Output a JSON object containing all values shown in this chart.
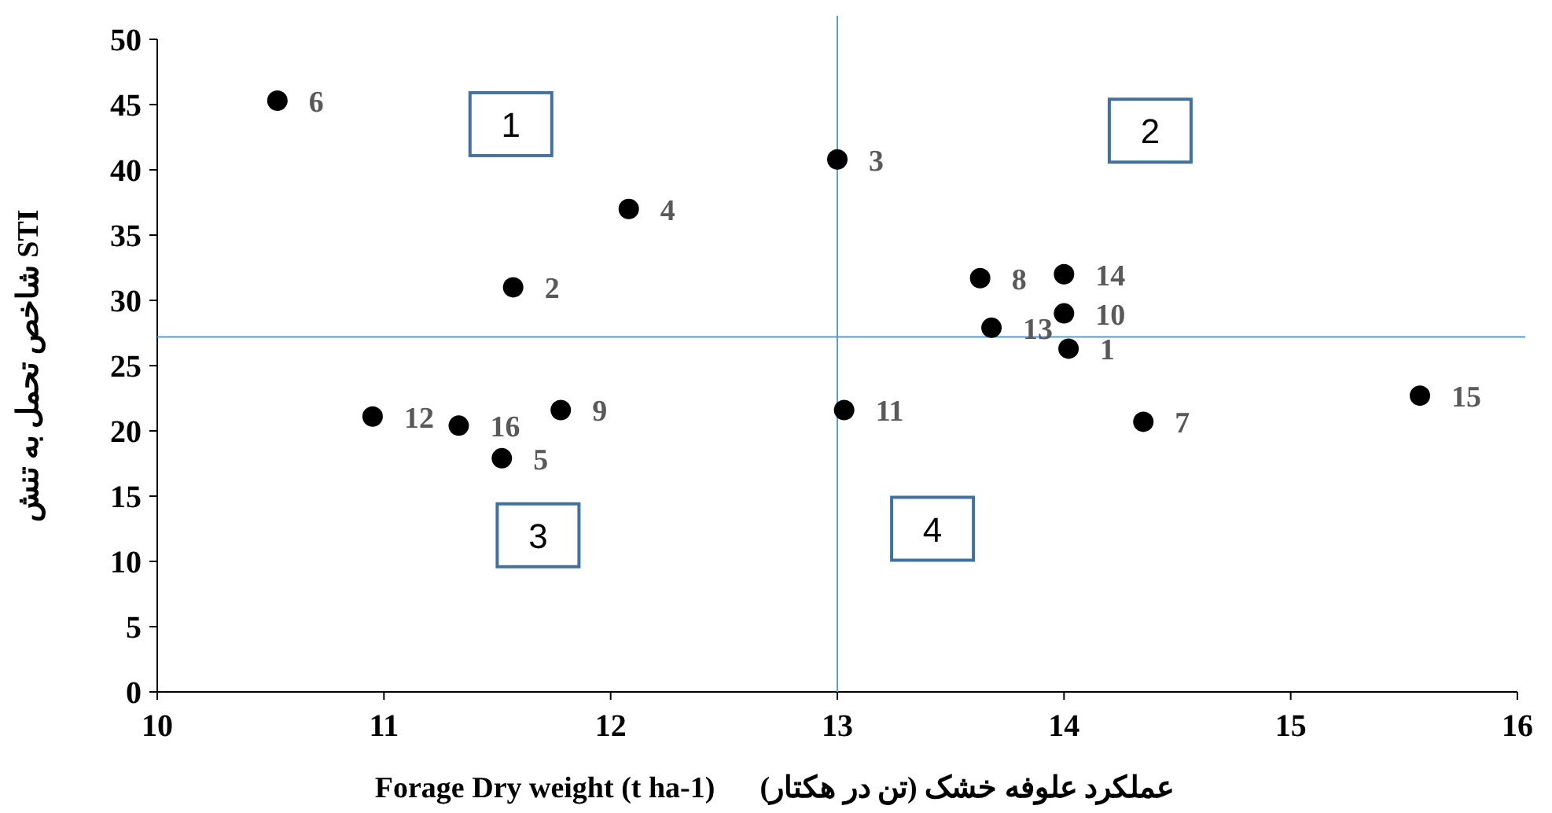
{
  "chart_data": {
    "type": "scatter",
    "xlabel": "Forage Dry weight (t ha-1)      عملکرد علوفه خشک (تن در هکتار)",
    "ylabel": "شاخص تحمل به تنش STI",
    "x": [
      10.53,
      13.0,
      12.08,
      11.57,
      13.63,
      14.0,
      14.0,
      13.68,
      14.02,
      15.57,
      10.95,
      11.33,
      11.78,
      11.52,
      13.03,
      14.35
    ],
    "series": [
      {
        "color": "#000000",
        "values": [
          45.3,
          40.8,
          37.0,
          31.0,
          31.7,
          32.0,
          29.0,
          27.9,
          26.3,
          22.7,
          21.1,
          20.4,
          21.6,
          17.9,
          21.6,
          20.7
        ]
      }
    ],
    "xlim": [
      10,
      16
    ],
    "xticks": [
      10,
      11,
      12,
      13,
      14,
      15,
      16
    ],
    "ylim": [
      0,
      50
    ],
    "yticks": [
      0,
      5,
      10,
      15,
      20,
      25,
      30,
      35,
      40,
      45,
      50
    ],
    "marker": "circle",
    "ref_lines": [
      {
        "axis": "x",
        "value": 13,
        "color": "#5b9bd5"
      },
      {
        "axis": "y",
        "value": 27.2,
        "color": "#5b9bd5"
      }
    ],
    "annotations": [
      "1",
      "2",
      "3",
      "4",
      {
        "text": "6",
        "x": 10.53,
        "y": 45.3
      },
      {
        "text": "3",
        "x": 13.0,
        "y": 40.8
      },
      {
        "text": "4",
        "x": 12.08,
        "y": 37.0
      },
      {
        "text": "2",
        "x": 11.57,
        "y": 31.0
      },
      {
        "text": "8",
        "x": 13.63,
        "y": 31.7
      },
      {
        "text": "14",
        "x": 14.0,
        "y": 32.0
      },
      {
        "text": "10",
        "x": 14.0,
        "y": 29.0
      },
      {
        "text": "13",
        "x": 13.68,
        "y": 27.9
      },
      {
        "text": "1",
        "x": 14.02,
        "y": 26.3
      },
      {
        "text": "15",
        "x": 15.57,
        "y": 22.7
      },
      {
        "text": "12",
        "x": 10.95,
        "y": 21.1
      },
      {
        "text": "16",
        "x": 11.33,
        "y": 20.4
      },
      {
        "text": "9",
        "x": 11.78,
        "y": 21.6
      },
      {
        "text": "5",
        "x": 11.52,
        "y": 17.9
      },
      {
        "text": "11",
        "x": 13.03,
        "y": 21.6
      },
      {
        "text": "7",
        "x": 14.35,
        "y": 20.7
      }
    ]
  }
}
